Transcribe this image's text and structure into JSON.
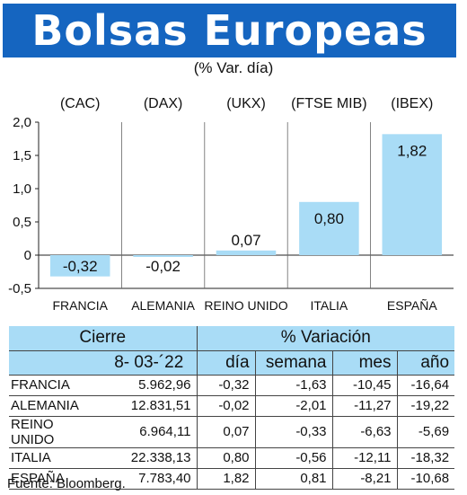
{
  "title": "Bolsas Europeas",
  "subtitle": "(% Var. día)",
  "chart_data": {
    "type": "bar",
    "categories": [
      "FRANCIA",
      "ALEMANIA",
      "REINO UNIDO",
      "ITALIA",
      "ESPAÑA"
    ],
    "indices": [
      "(CAC)",
      "(DAX)",
      "(UKX)",
      "(FTSE MIB)",
      "(IBEX)"
    ],
    "values": [
      -0.32,
      -0.02,
      0.07,
      0.8,
      1.82
    ],
    "value_labels": [
      "-0,32",
      "-0,02",
      "0,07",
      "0,80",
      "1,82"
    ],
    "yticks": [
      "2,0",
      "1,5",
      "1,0",
      "0,5",
      "0",
      "-0,5"
    ],
    "ytick_values": [
      2.0,
      1.5,
      1.0,
      0.5,
      0,
      -0.5
    ],
    "ylim": [
      -0.5,
      2.0
    ],
    "bar_color": "#a9dcf6",
    "grid": "vertical separators"
  },
  "table": {
    "header_cierre": "Cierre",
    "header_variacion": "% Variación",
    "date": "8- 03-´22",
    "columns": [
      "día",
      "semana",
      "mes",
      "año"
    ],
    "rows": [
      {
        "name": "FRANCIA",
        "cierre": "5.962,96",
        "dia": "-0,32",
        "semana": "-1,63",
        "mes": "-10,45",
        "ano": "-16,64"
      },
      {
        "name": "ALEMANIA",
        "cierre": "12.831,51",
        "dia": "-0,02",
        "semana": "-2,01",
        "mes": "-11,27",
        "ano": "-19,22"
      },
      {
        "name": "REINO UNIDO",
        "cierre": "6.964,11",
        "dia": "0,07",
        "semana": "-0,33",
        "mes": "-6,63",
        "ano": "-5,69"
      },
      {
        "name": "ITALIA",
        "cierre": "22.338,13",
        "dia": "0,80",
        "semana": "-0,56",
        "mes": "-12,11",
        "ano": "-18,32"
      },
      {
        "name": "ESPAÑA",
        "cierre": "7.783,40",
        "dia": "1,82",
        "semana": "0,81",
        "mes": "-8,21",
        "ano": "-10,68"
      }
    ]
  },
  "source": "Fuente: Bloomberg.",
  "colors": {
    "header": "#1565c0",
    "accent": "#a9dcf6"
  }
}
